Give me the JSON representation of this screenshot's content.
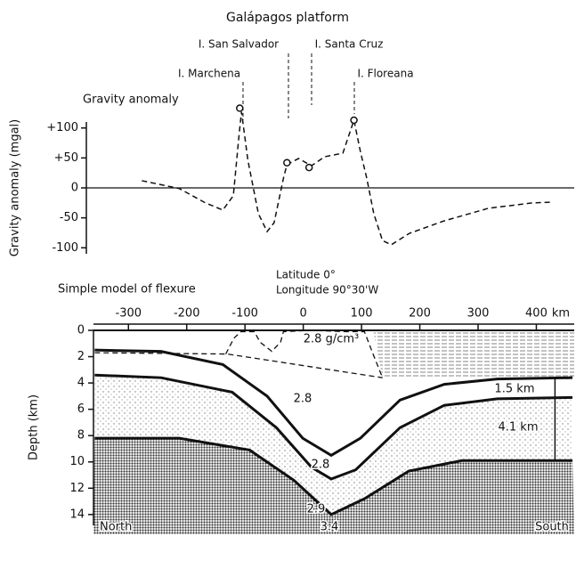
{
  "chart_data": [
    {
      "type": "line",
      "title": "Galápagos platform",
      "subtitle": "Gravity anomaly",
      "ylabel": "Gravity anomaly (mgal)",
      "annotations": [
        "I. Marchena",
        "I. San Salvador",
        "I. Santa Cruz",
        "I. Floreana"
      ],
      "xlim": [
        -360,
        465
      ],
      "ylim": [
        -110,
        110
      ],
      "yticks": [
        {
          "value": 100,
          "label": "+100"
        },
        {
          "value": 50,
          "label": "+50"
        },
        0,
        -50,
        -100
      ],
      "zero_line": true,
      "series": [
        {
          "color": "#111111",
          "style": "dashed",
          "x": [
            -277,
            -213,
            -168,
            -138,
            -120,
            -110,
            -106,
            -95,
            -77,
            -62,
            -50,
            -34,
            -28,
            -8,
            14,
            37,
            68,
            87,
            98,
            109,
            121,
            136,
            151,
            182,
            242,
            318,
            394,
            424
          ],
          "values": [
            12,
            -1,
            -25,
            -37,
            -13,
            90,
            127,
            46,
            -43,
            -73,
            -58,
            16,
            39,
            49,
            37,
            52,
            58,
            113,
            61,
            16,
            -43,
            -88,
            -95,
            -76,
            -55,
            -34,
            -25,
            -24
          ]
        },
        {
          "color": "#111111",
          "style": "circle",
          "x": [
            -109,
            -28,
            10,
            87
          ],
          "values": [
            133,
            42,
            34,
            113
          ]
        }
      ]
    },
    {
      "type": "cross-section",
      "title": "Simple model of flexure",
      "annotations": [
        "Latitude 0°",
        "Longitude 90°30'W"
      ],
      "xunit": "km",
      "ylabel": "Depth (km)",
      "xlim": [
        -360,
        465
      ],
      "ylim": [
        0,
        15.5
      ],
      "invert_y": true,
      "xticks": [
        -300,
        -200,
        -100,
        0,
        100,
        200,
        300,
        400
      ],
      "yticks": [
        0,
        2,
        4,
        6,
        8,
        10,
        12,
        14
      ],
      "labels": [
        "2.8 g/cm³",
        "2.8",
        "2.8",
        "2.9",
        "3.4",
        "1.5 km",
        "4.1 km",
        "North",
        "South"
      ],
      "layers": [
        {
          "style": "platform",
          "x": [
            -133,
            -119,
            -107,
            -84,
            -74,
            -54,
            -39,
            -34,
            14,
            75,
            105,
            118,
            136
          ],
          "values": [
            1.8,
            0.6,
            0.1,
            0.1,
            0.9,
            1.6,
            0.9,
            0.1,
            0,
            0.1,
            0.1,
            1.6,
            3.6
          ]
        },
        {
          "style": "dashed",
          "x": [
            -358,
            -130,
            136
          ],
          "values": [
            1.7,
            1.8,
            3.6
          ]
        },
        {
          "style": "solid",
          "x": [
            -358,
            -244,
            -138,
            -62,
            -1,
            48,
            98,
            166,
            242,
            333,
            462
          ],
          "values": [
            1.5,
            1.6,
            2.6,
            5.0,
            8.2,
            9.5,
            8.2,
            5.3,
            4.1,
            3.7,
            3.6
          ]
        },
        {
          "style": "solid",
          "x": [
            -358,
            -244,
            -122,
            -46,
            14,
            48,
            90,
            166,
            242,
            333,
            462
          ],
          "values": [
            3.4,
            3.6,
            4.7,
            7.4,
            10.4,
            11.3,
            10.6,
            7.4,
            5.7,
            5.2,
            5.1
          ]
        },
        {
          "style": "solid",
          "x": [
            -358,
            -213,
            -92,
            -16,
            48,
            105,
            181,
            272,
            462
          ],
          "values": [
            8.2,
            8.2,
            9.1,
            11.4,
            14.0,
            12.8,
            10.7,
            9.9,
            9.9
          ]
        }
      ]
    }
  ]
}
